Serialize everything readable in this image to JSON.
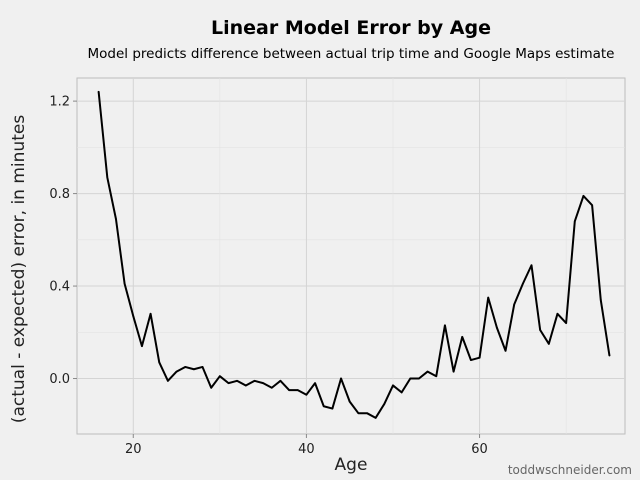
{
  "chart_data": {
    "type": "line",
    "title": "Linear Model Error by Age",
    "subtitle": "Model predicts difference between actual trip time and Google Maps estimate",
    "xlabel": "Age",
    "ylabel": "(actual - expected) error, in minutes",
    "credit": "toddwschneider.com",
    "xlim": [
      13.5,
      76.8
    ],
    "ylim": [
      -0.24,
      1.3
    ],
    "xticks": [
      20,
      40,
      60
    ],
    "yticks": [
      0.0,
      0.4,
      0.8,
      1.2
    ],
    "ytick_labels": [
      "0.0",
      "0.4",
      "0.8",
      "1.2"
    ],
    "grid": true,
    "line_color": "#000000",
    "series": [
      {
        "x": [
          16,
          17,
          18,
          19,
          20,
          21,
          22,
          23,
          24,
          25,
          26,
          27,
          28,
          29,
          30,
          31,
          32,
          33,
          34,
          35,
          36,
          37,
          38,
          39,
          40,
          41,
          42,
          43,
          44,
          45,
          46,
          47,
          48,
          49,
          50,
          51,
          52,
          53,
          54,
          55,
          56,
          57,
          58,
          59,
          60,
          61,
          62,
          63,
          64,
          65,
          66,
          67,
          68,
          69,
          70,
          71,
          72,
          73,
          74,
          75
        ],
        "y": [
          1.24,
          0.87,
          0.69,
          0.41,
          0.27,
          0.14,
          0.28,
          0.07,
          -0.01,
          0.03,
          0.05,
          0.04,
          0.05,
          -0.04,
          0.01,
          -0.02,
          -0.01,
          -0.03,
          -0.01,
          -0.02,
          -0.04,
          -0.01,
          -0.05,
          -0.05,
          -0.07,
          -0.02,
          -0.12,
          -0.13,
          0.0,
          -0.1,
          -0.15,
          -0.15,
          -0.17,
          -0.11,
          -0.03,
          -0.06,
          0.0,
          0.0,
          0.03,
          0.01,
          0.23,
          0.03,
          0.18,
          0.08,
          0.09,
          0.35,
          0.22,
          0.12,
          0.32,
          0.41,
          0.49,
          0.21,
          0.15,
          0.28,
          0.24,
          0.68,
          0.79,
          0.75,
          0.34,
          0.1
        ]
      }
    ]
  }
}
